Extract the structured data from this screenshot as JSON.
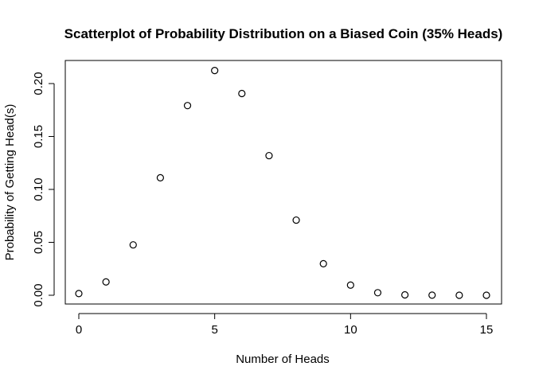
{
  "chart_data": {
    "type": "scatter",
    "title": "Scatterplot of Probability Distribution on a Biased Coin (35% Heads)",
    "xlabel": "Number of Heads",
    "ylabel": "Probability of Getting Head(s)",
    "xlim": [
      0,
      15
    ],
    "ylim": [
      0,
      0.21
    ],
    "xticks": [
      "0",
      "5",
      "10",
      "15"
    ],
    "yticks": [
      "0.00",
      "0.05",
      "0.10",
      "0.15",
      "0.20"
    ],
    "grid": false,
    "series": [
      {
        "x": [
          0,
          1,
          2,
          3,
          4,
          5,
          6,
          7,
          8,
          9,
          10,
          11,
          12,
          13,
          14,
          15
        ],
        "values": [
          0.0016,
          0.0126,
          0.0476,
          0.111,
          0.1792,
          0.2123,
          0.1906,
          0.1319,
          0.071,
          0.0298,
          0.0096,
          0.0024,
          0.0004,
          0.0001,
          0.0,
          0.0
        ]
      }
    ]
  }
}
